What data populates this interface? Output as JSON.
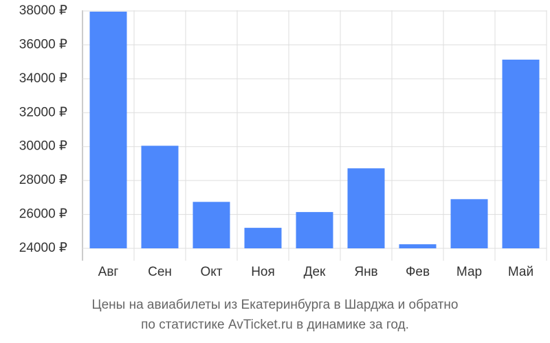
{
  "chart_data": {
    "type": "bar",
    "caption": [
      "Цены на авиабилеты из Екатеринбурга в Шарджа и обратно",
      "по статистике AvTicket.ru в динамике за год."
    ],
    "categories": [
      "Авг",
      "Сен",
      "Окт",
      "Ноя",
      "Дек",
      "Янв",
      "Фев",
      "Мар",
      "Май"
    ],
    "values": [
      37960,
      30050,
      26740,
      25210,
      26140,
      28720,
      24240,
      26900,
      35130
    ],
    "color": "#4d88fc",
    "ylim": [
      24000,
      38000
    ],
    "yticks": [
      {
        "value": 24000,
        "label": "24000 ₽"
      },
      {
        "value": 26000,
        "label": "26000 ₽"
      },
      {
        "value": 28000,
        "label": "28000 ₽"
      },
      {
        "value": 30000,
        "label": "30000 ₽"
      },
      {
        "value": 32000,
        "label": "32000 ₽"
      },
      {
        "value": 34000,
        "label": "34000 ₽"
      },
      {
        "value": 36000,
        "label": "36000 ₽"
      },
      {
        "value": 38000,
        "label": "38000 ₽"
      }
    ],
    "grid": true
  }
}
